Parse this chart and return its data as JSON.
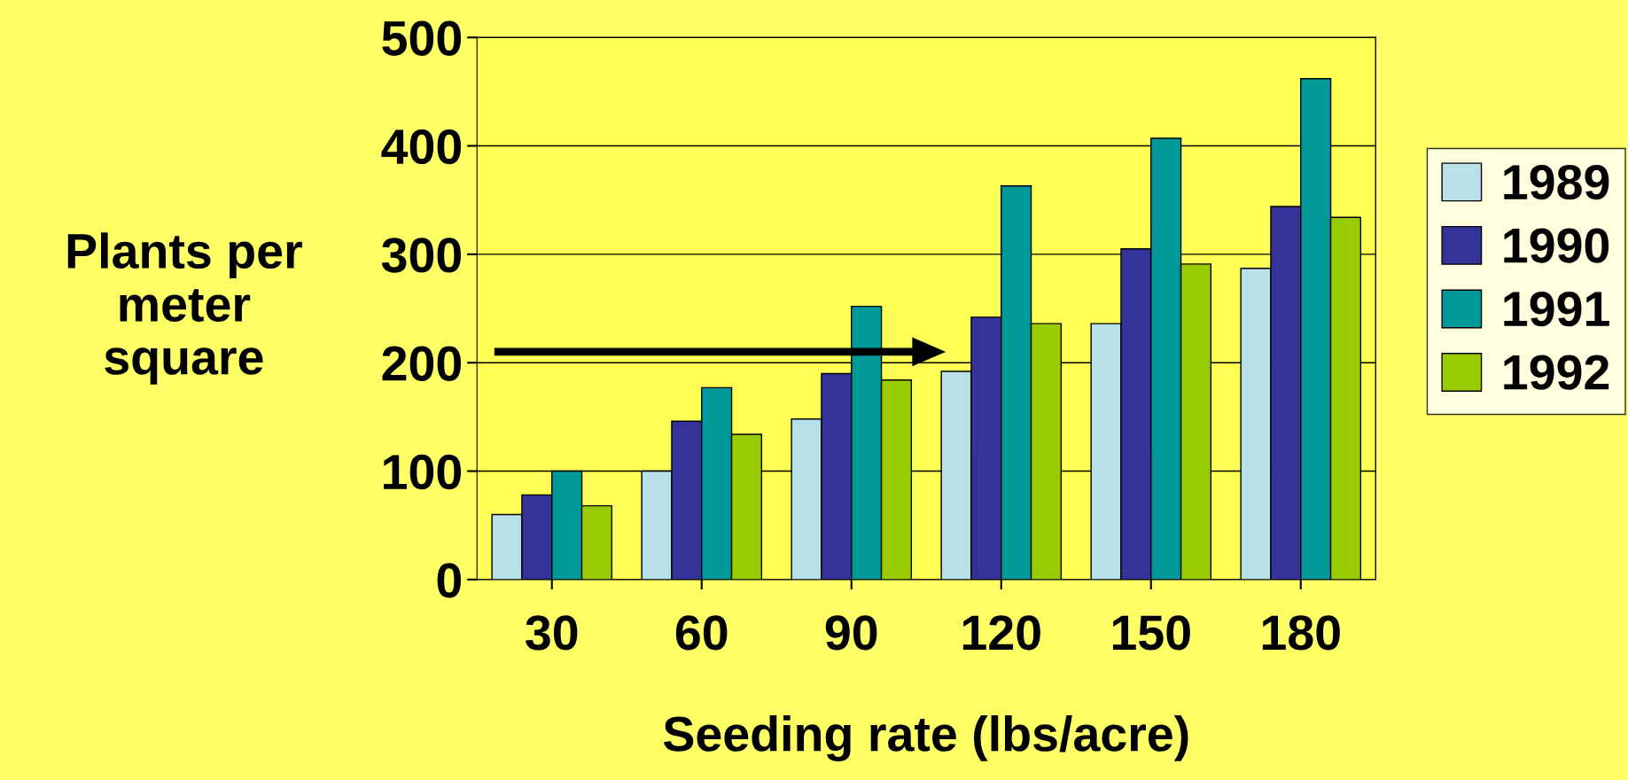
{
  "chart_data": {
    "type": "bar",
    "xlabel": "Seeding rate (lbs/acre)",
    "ylabel": "Plants per\nmeter\nsquare",
    "categories": [
      "30",
      "60",
      "90",
      "120",
      "150",
      "180"
    ],
    "series": [
      {
        "name": "1989",
        "color": "#b8e0e8",
        "values": [
          60,
          100,
          148,
          192,
          236,
          287
        ]
      },
      {
        "name": "1990",
        "color": "#333399",
        "values": [
          78,
          146,
          190,
          242,
          305,
          344
        ]
      },
      {
        "name": "1991",
        "color": "#009999",
        "values": [
          100,
          177,
          252,
          363,
          407,
          462
        ]
      },
      {
        "name": "1992",
        "color": "#99cc00",
        "values": [
          68,
          134,
          184,
          236,
          291,
          334
        ]
      }
    ],
    "ylim": [
      0,
      500
    ],
    "yticks": [
      0,
      100,
      200,
      300,
      400,
      500
    ],
    "grid": "y",
    "legend": "right"
  }
}
